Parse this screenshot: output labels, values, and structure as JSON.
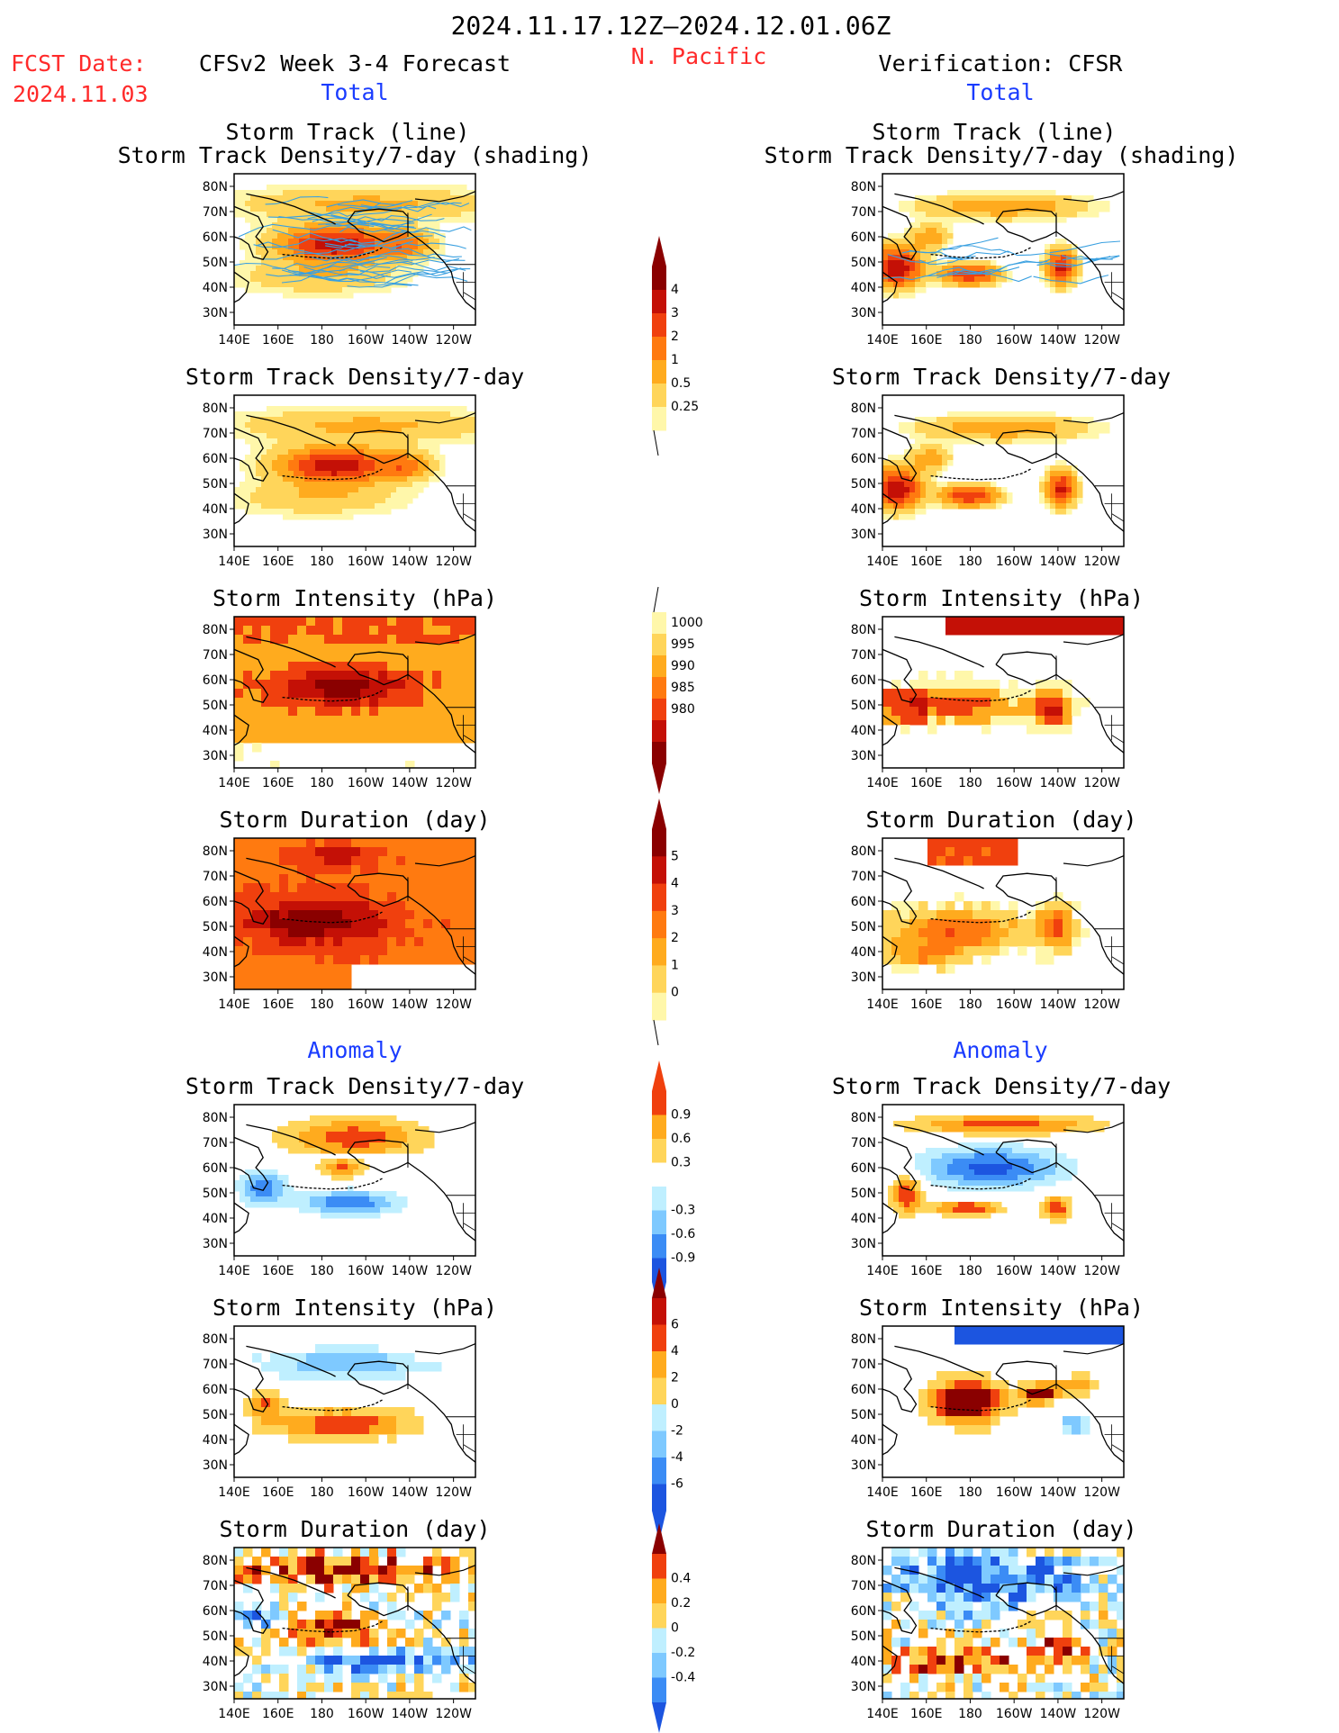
{
  "header": {
    "date_range": "2024.11.17.12Z–2024.12.01.06Z",
    "fcst_label": "FCST Date:",
    "fcst_date": "2024.11.03",
    "model_label": "CFSv2 Week 3-4 Forecast",
    "region": "N. Pacific",
    "verification_label": "Verification: CFSR",
    "left_section": "Total",
    "right_section": "Total",
    "anomaly_left": "Anomaly",
    "anomaly_right": "Anomaly"
  },
  "panel_titles": {
    "track_line": "Storm Track (line)",
    "track_shading": "Storm Track Density/7-day (shading)",
    "density": "Storm Track Density/7-day",
    "intensity": "Storm Intensity (hPa)",
    "duration": "Storm Duration (day)"
  },
  "colors": {
    "red_text": "#ff2a2a",
    "blue_text": "#1a3cff",
    "warm": [
      "#fff7aa",
      "#ffd55a",
      "#ffab1e",
      "#ff7a10",
      "#f0400e",
      "#c41006",
      "#8a0000"
    ],
    "cool": [
      "#bfefff",
      "#7ec9ff",
      "#3b8cf5",
      "#1c55e0"
    ],
    "track_line": "#3aa0e0"
  },
  "chart_data": [
    {
      "type": "heatmap",
      "id": "fc-total-track",
      "title": "Storm Track (line)",
      "subtitle": "Storm Track Density/7-day (shading)",
      "x_ticks": [
        "140E",
        "160E",
        "180",
        "160W",
        "140W",
        "120W"
      ],
      "y_ticks": [
        "80N",
        "70N",
        "60N",
        "50N",
        "40N",
        "30N"
      ],
      "pattern": "fc_dens",
      "lines": true
    },
    {
      "type": "heatmap",
      "id": "fc-total-density",
      "title": "Storm Track Density/7-day",
      "x_ticks": [
        "140E",
        "160E",
        "180",
        "160W",
        "140W",
        "120W"
      ],
      "y_ticks": [
        "80N",
        "70N",
        "60N",
        "50N",
        "40N",
        "30N"
      ],
      "pattern": "fc_dens",
      "lines": false
    },
    {
      "type": "heatmap",
      "id": "fc-total-intensity",
      "title": "Storm Intensity (hPa)",
      "x_ticks": [
        "140E",
        "160E",
        "180",
        "160W",
        "140W",
        "120W"
      ],
      "y_ticks": [
        "80N",
        "70N",
        "60N",
        "50N",
        "40N",
        "30N"
      ],
      "pattern": "fc_int"
    },
    {
      "type": "heatmap",
      "id": "fc-total-duration",
      "title": "Storm Duration (day)",
      "x_ticks": [
        "140E",
        "160E",
        "180",
        "160W",
        "140W",
        "120W"
      ],
      "y_ticks": [
        "80N",
        "70N",
        "60N",
        "50N",
        "40N",
        "30N"
      ],
      "pattern": "fc_dur"
    },
    {
      "type": "heatmap",
      "id": "fc-anom-density",
      "title": "Storm Track Density/7-day",
      "x_ticks": [
        "140E",
        "160E",
        "180",
        "160W",
        "140W",
        "120W"
      ],
      "y_ticks": [
        "80N",
        "70N",
        "60N",
        "50N",
        "40N",
        "30N"
      ],
      "pattern": "fc_adens"
    },
    {
      "type": "heatmap",
      "id": "fc-anom-intensity",
      "title": "Storm Intensity (hPa)",
      "x_ticks": [
        "140E",
        "160E",
        "180",
        "160W",
        "140W",
        "120W"
      ],
      "y_ticks": [
        "80N",
        "70N",
        "60N",
        "50N",
        "40N",
        "30N"
      ],
      "pattern": "fc_aint"
    },
    {
      "type": "heatmap",
      "id": "fc-anom-duration",
      "title": "Storm Duration (day)",
      "x_ticks": [
        "140E",
        "160E",
        "180",
        "160W",
        "140W",
        "120W"
      ],
      "y_ticks": [
        "80N",
        "70N",
        "60N",
        "50N",
        "40N",
        "30N"
      ],
      "pattern": "fc_adur"
    },
    {
      "type": "heatmap",
      "id": "obs-total-track",
      "title": "Storm Track (line)",
      "subtitle": "Storm Track Density/7-day (shading)",
      "x_ticks": [
        "140E",
        "160E",
        "180",
        "160W",
        "140W",
        "120W"
      ],
      "y_ticks": [
        "80N",
        "70N",
        "60N",
        "50N",
        "40N",
        "30N"
      ],
      "pattern": "ob_dens",
      "lines": true
    },
    {
      "type": "heatmap",
      "id": "obs-total-density",
      "title": "Storm Track Density/7-day",
      "x_ticks": [
        "140E",
        "160E",
        "180",
        "160W",
        "140W",
        "120W"
      ],
      "y_ticks": [
        "80N",
        "70N",
        "60N",
        "50N",
        "40N",
        "30N"
      ],
      "pattern": "ob_dens",
      "lines": false
    },
    {
      "type": "heatmap",
      "id": "obs-total-intensity",
      "title": "Storm Intensity (hPa)",
      "x_ticks": [
        "140E",
        "160E",
        "180",
        "160W",
        "140W",
        "120W"
      ],
      "y_ticks": [
        "80N",
        "70N",
        "60N",
        "50N",
        "40N",
        "30N"
      ],
      "pattern": "ob_int"
    },
    {
      "type": "heatmap",
      "id": "obs-total-duration",
      "title": "Storm Duration (day)",
      "x_ticks": [
        "140E",
        "160E",
        "180",
        "160W",
        "140W",
        "120W"
      ],
      "y_ticks": [
        "80N",
        "70N",
        "60N",
        "50N",
        "40N",
        "30N"
      ],
      "pattern": "ob_dur"
    },
    {
      "type": "heatmap",
      "id": "obs-anom-density",
      "title": "Storm Track Density/7-day",
      "x_ticks": [
        "140E",
        "160E",
        "180",
        "160W",
        "140W",
        "120W"
      ],
      "y_ticks": [
        "80N",
        "70N",
        "60N",
        "50N",
        "40N",
        "30N"
      ],
      "pattern": "ob_adens"
    },
    {
      "type": "heatmap",
      "id": "obs-anom-intensity",
      "title": "Storm Intensity (hPa)",
      "x_ticks": [
        "140E",
        "160E",
        "180",
        "160W",
        "140W",
        "120W"
      ],
      "y_ticks": [
        "80N",
        "70N",
        "60N",
        "50N",
        "40N",
        "30N"
      ],
      "pattern": "ob_aint"
    },
    {
      "type": "heatmap",
      "id": "obs-anom-duration",
      "title": "Storm Duration (day)",
      "x_ticks": [
        "140E",
        "160E",
        "180",
        "160W",
        "140W",
        "120W"
      ],
      "y_ticks": [
        "80N",
        "70N",
        "60N",
        "50N",
        "40N",
        "30N"
      ],
      "pattern": "ob_adur"
    }
  ],
  "colorbars": [
    {
      "id": "cb-density",
      "labels": [
        "4",
        "3",
        "2",
        "1",
        "0.5",
        "0.25"
      ],
      "scheme": "warm6"
    },
    {
      "id": "cb-intensity",
      "labels": [
        "1000",
        "995",
        "990",
        "985",
        "980"
      ],
      "scheme": "intensity"
    },
    {
      "id": "cb-duration",
      "labels": [
        "5",
        "4",
        "3",
        "2",
        "1",
        "0"
      ],
      "scheme": "warm6"
    },
    {
      "id": "cb-anom-density",
      "labels": [
        "0.9",
        "0.6",
        "0.3",
        "-0.3",
        "-0.6",
        "-0.9"
      ],
      "scheme": "anom"
    },
    {
      "id": "cb-anom-intensity",
      "labels": [
        "6",
        "4",
        "2",
        "0",
        "-2",
        "-4",
        "-6"
      ],
      "scheme": "anom7"
    },
    {
      "id": "cb-anom-duration",
      "labels": [
        "0.4",
        "0.2",
        "0",
        "-0.2",
        "-0.4"
      ],
      "scheme": "anom5"
    }
  ]
}
